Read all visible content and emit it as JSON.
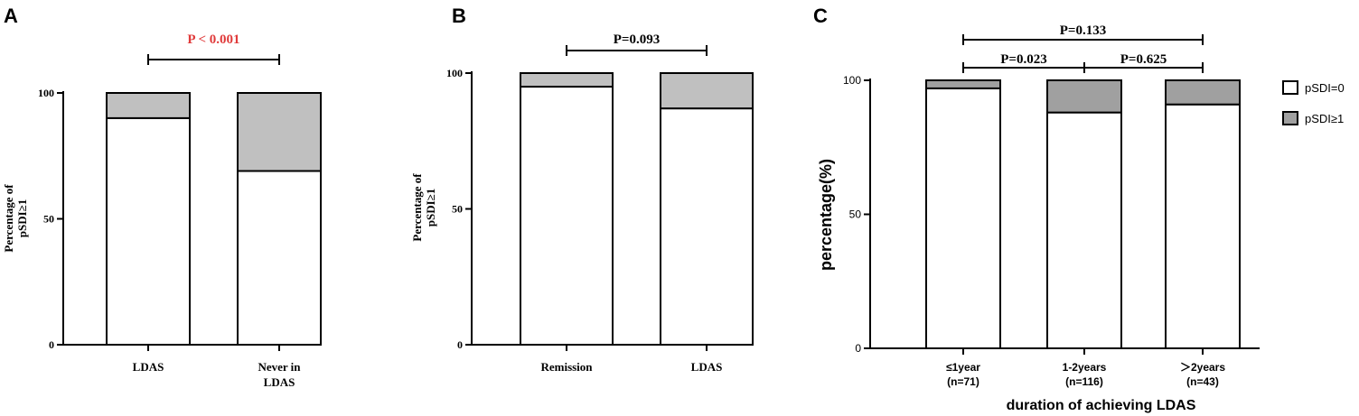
{
  "chart_data": [
    {
      "panel": "A",
      "type": "bar",
      "stacked": true,
      "categories": [
        [
          "LDAS"
        ],
        [
          "Never in",
          "LDAS"
        ]
      ],
      "series": [
        {
          "label": "pSDI=0",
          "values": [
            90,
            69
          ],
          "color": "#ffffff"
        },
        {
          "label": "pSDI≥1",
          "values": [
            10,
            31
          ],
          "color": "#c0c0c0"
        }
      ],
      "ylabel": [
        "Percentage of",
        "pSDI≥1"
      ],
      "yticks": [
        "0",
        "50",
        "100"
      ],
      "ylim": [
        0,
        100
      ],
      "comparisons": [
        {
          "from": 0,
          "to": 1,
          "label": "P < 0.001",
          "color": "#e03a3a"
        }
      ]
    },
    {
      "panel": "B",
      "type": "bar",
      "stacked": true,
      "categories": [
        [
          "Remission"
        ],
        [
          "LDAS"
        ]
      ],
      "series": [
        {
          "label": "pSDI=0",
          "values": [
            95,
            87
          ],
          "color": "#ffffff"
        },
        {
          "label": "pSDI≥1",
          "values": [
            5,
            13
          ],
          "color": "#c0c0c0"
        }
      ],
      "ylabel": [
        "Percentage of",
        "pSDI≥1"
      ],
      "yticks": [
        "0",
        "50",
        "100"
      ],
      "ylim": [
        0,
        100
      ],
      "comparisons": [
        {
          "from": 0,
          "to": 1,
          "label": "P=0.093",
          "color": "#000000"
        }
      ]
    },
    {
      "panel": "C",
      "type": "bar",
      "stacked": true,
      "categories": [
        [
          "≤1year",
          "(n=71)"
        ],
        [
          "1-2years",
          "(n=116)"
        ],
        [
          "＞2years",
          "(n=43)"
        ]
      ],
      "series": [
        {
          "name": "pSDI=0",
          "values": [
            97,
            88,
            91
          ],
          "color": "#ffffff"
        },
        {
          "name": "pSDI≥1",
          "values": [
            3,
            12,
            9
          ],
          "color": "#a0a0a0"
        }
      ],
      "ylabel": "percentage(%)",
      "xlabel": "duration of achieving LDAS",
      "yticks": [
        "0",
        "50",
        "100"
      ],
      "ylim": [
        0,
        100
      ],
      "legend_position": "right",
      "comparisons": [
        {
          "from": 0,
          "to": 2,
          "label": "P=0.133",
          "color": "#000000"
        },
        {
          "from": 0,
          "to": 1,
          "label": "P=0.023",
          "color": "#000000"
        },
        {
          "from": 1,
          "to": 2,
          "label": "P=0.625",
          "color": "#000000"
        }
      ]
    }
  ]
}
